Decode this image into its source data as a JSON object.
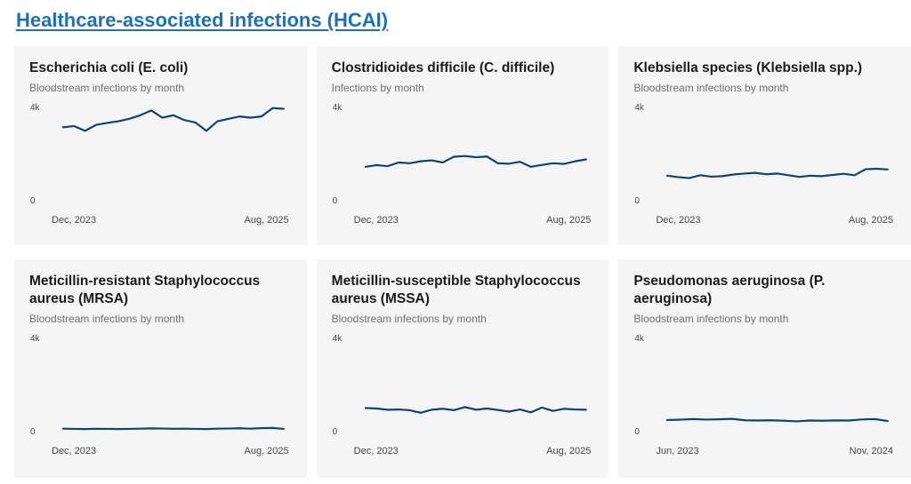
{
  "page": {
    "title": "Healthcare-associated infections (HCAI)"
  },
  "colors": {
    "accent_blue": "#1d70b8",
    "line_blue": "#12436d",
    "card_bg": "#f5f5f6"
  },
  "chart_data": [
    {
      "type": "line",
      "title": "Escherichia coli (E. coli)",
      "subtitle": "Bloodstream infections by month",
      "y_axis": {
        "max_label": "4k",
        "min_label": "0"
      },
      "x_axis": {
        "start_label": "Dec, 2023",
        "end_label": "Aug, 2025"
      },
      "ylim": [
        0,
        4000
      ],
      "x_unit": "month",
      "values": [
        3100,
        3150,
        2950,
        3200,
        3280,
        3350,
        3450,
        3600,
        3800,
        3500,
        3600,
        3400,
        3300,
        2950,
        3350,
        3450,
        3550,
        3500,
        3550,
        3900,
        3870
      ]
    },
    {
      "type": "line",
      "title": "Clostridioides difficile (C. difficile)",
      "subtitle": "Infections by month",
      "y_axis": {
        "max_label": "4k",
        "min_label": "0"
      },
      "x_axis": {
        "start_label": "Dec, 2023",
        "end_label": "Aug, 2025"
      },
      "ylim": [
        0,
        4000
      ],
      "x_unit": "month",
      "values": [
        1450,
        1520,
        1480,
        1630,
        1600,
        1680,
        1720,
        1630,
        1870,
        1900,
        1850,
        1880,
        1600,
        1580,
        1660,
        1450,
        1530,
        1600,
        1570,
        1680,
        1760
      ]
    },
    {
      "type": "line",
      "title": "Klebsiella species (Klebsiella spp.)",
      "subtitle": "Bloodstream infections by month",
      "y_axis": {
        "max_label": "4k",
        "min_label": "0"
      },
      "x_axis": {
        "start_label": "Dec, 2023",
        "end_label": "Aug, 2025"
      },
      "ylim": [
        0,
        4000
      ],
      "x_unit": "month",
      "values": [
        1080,
        1020,
        980,
        1100,
        1040,
        1060,
        1130,
        1170,
        1200,
        1140,
        1170,
        1100,
        1030,
        1080,
        1060,
        1110,
        1160,
        1100,
        1350,
        1370,
        1340
      ]
    },
    {
      "type": "line",
      "title": "Meticillin-resistant Staphylococcus aureus (MRSA)",
      "subtitle": "Bloodstream infections by month",
      "y_axis": {
        "max_label": "4k",
        "min_label": "0"
      },
      "x_axis": {
        "start_label": "Dec, 2023",
        "end_label": "Aug, 2025"
      },
      "ylim": [
        0,
        4000
      ],
      "x_unit": "month",
      "values": [
        160,
        150,
        145,
        155,
        150,
        145,
        150,
        160,
        170,
        165,
        155,
        160,
        150,
        145,
        160,
        165,
        175,
        160,
        180,
        190,
        150
      ]
    },
    {
      "type": "line",
      "title": "Meticillin-susceptible Staphylococcus aureus (MSSA)",
      "subtitle": "Bloodstream infections by month",
      "y_axis": {
        "max_label": "4k",
        "min_label": "0"
      },
      "x_axis": {
        "start_label": "Dec, 2023",
        "end_label": "Aug, 2025"
      },
      "ylim": [
        0,
        4000
      ],
      "x_unit": "month",
      "values": [
        1020,
        1000,
        950,
        960,
        930,
        820,
        950,
        990,
        930,
        1060,
        950,
        1000,
        940,
        870,
        960,
        840,
        1040,
        900,
        990,
        960,
        950
      ]
    },
    {
      "type": "line",
      "title": "Pseudomonas aeruginosa (P. aeruginosa)",
      "subtitle": "Bloodstream infections by month",
      "y_axis": {
        "max_label": "4k",
        "min_label": "0"
      },
      "x_axis": {
        "start_label": "Jun, 2023",
        "end_label": "Nov, 2024"
      },
      "ylim": [
        0,
        4000
      ],
      "x_unit": "month",
      "values": [
        520,
        535,
        560,
        540,
        550,
        570,
        510,
        500,
        510,
        490,
        465,
        500,
        490,
        505,
        500,
        545,
        560,
        480
      ]
    }
  ]
}
